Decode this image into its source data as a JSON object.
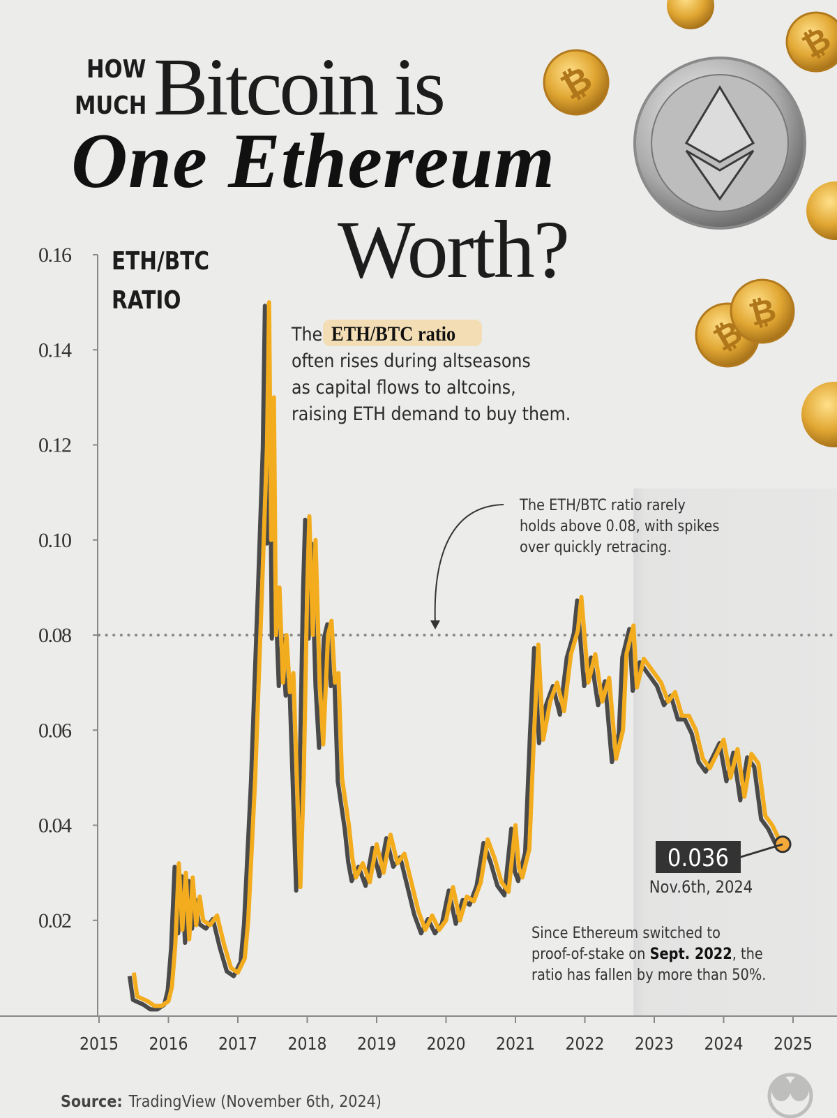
{
  "header": {
    "kicker_line1": "HOW",
    "kicker_line2": "MUCH",
    "title_line1": "Bitcoin is",
    "title_line2": "One Ethereum",
    "title_line3": "Worth?"
  },
  "annotations": {
    "intro_prefix": "The",
    "intro_highlight": "ETH/BTC ratio",
    "intro_lines": [
      "often rises during altseasons",
      "as capital flows to altcoins,",
      "raising ETH demand to buy them."
    ],
    "threshold_lines": [
      "The ETH/BTC ratio rarely",
      "holds above 0.08, with spikes",
      "over quickly retracing."
    ],
    "pos_line1": "Since Ethereum switched to",
    "pos_line2_a": "proof-of-stake on ",
    "pos_line2_bold": "Sept. 2022",
    "pos_line2_b": ", the",
    "pos_line3": "ratio has fallen by more than 50%.",
    "latest_value": "0.036",
    "latest_date": "Nov.6th, 2024"
  },
  "footer": {
    "source_label": "Source:",
    "source_text": "TradingView (November 6th, 2024)",
    "logo": "Visual Capitalist"
  },
  "colors": {
    "line": "#f2ac1e",
    "shadow": "#4a4a4a",
    "text": "#1c1c1c",
    "background": "#ececeb"
  },
  "icons": [
    "bitcoin-coin-icon",
    "ethereum-coin-icon",
    "arrow-icon",
    "logo-icon"
  ],
  "chart_data": {
    "type": "line",
    "ylabel": "ETH/BTC RATIO",
    "xlabel": "",
    "ylim": [
      0,
      0.16
    ],
    "xlim": [
      2015,
      2025
    ],
    "yticks": [
      "0.02",
      "0.04",
      "0.06",
      "0.08",
      "0.10",
      "0.12",
      "0.14",
      "0.16"
    ],
    "xticks": [
      "2015",
      "2016",
      "2017",
      "2018",
      "2019",
      "2020",
      "2021",
      "2022",
      "2023",
      "2024",
      "2025"
    ],
    "reference_line": 0.08,
    "highlight_start": 2022.7,
    "x": [
      2015.5,
      2015.55,
      2015.7,
      2015.8,
      2015.9,
      2016.0,
      2016.05,
      2016.1,
      2016.15,
      2016.2,
      2016.25,
      2016.3,
      2016.35,
      2016.4,
      2016.45,
      2016.5,
      2016.6,
      2016.7,
      2016.8,
      2016.9,
      2017.0,
      2017.1,
      2017.15,
      2017.2,
      2017.25,
      2017.3,
      2017.35,
      2017.42,
      2017.45,
      2017.48,
      2017.52,
      2017.55,
      2017.6,
      2017.65,
      2017.7,
      2017.75,
      2017.8,
      2017.85,
      2017.9,
      2017.95,
      2018.0,
      2018.03,
      2018.08,
      2018.12,
      2018.18,
      2018.23,
      2018.3,
      2018.35,
      2018.4,
      2018.45,
      2018.5,
      2018.55,
      2018.6,
      2018.65,
      2018.7,
      2018.8,
      2018.9,
      2019.0,
      2019.1,
      2019.2,
      2019.3,
      2019.4,
      2019.5,
      2019.6,
      2019.7,
      2019.8,
      2019.9,
      2020.0,
      2020.1,
      2020.2,
      2020.3,
      2020.4,
      2020.5,
      2020.6,
      2020.7,
      2020.8,
      2020.9,
      2021.0,
      2021.05,
      2021.1,
      2021.2,
      2021.27,
      2021.33,
      2021.4,
      2021.5,
      2021.6,
      2021.7,
      2021.8,
      2021.9,
      2021.95,
      2022.05,
      2022.15,
      2022.25,
      2022.35,
      2022.45,
      2022.55,
      2022.6,
      2022.7,
      2022.75,
      2022.85,
      2023.0,
      2023.1,
      2023.2,
      2023.3,
      2023.4,
      2023.5,
      2023.6,
      2023.7,
      2023.8,
      2023.9,
      2024.0,
      2024.1,
      2024.2,
      2024.3,
      2024.4,
      2024.5,
      2024.6,
      2024.7,
      2024.8,
      2024.85
    ],
    "values": [
      0.009,
      0.004,
      0.003,
      0.002,
      0.002,
      0.003,
      0.006,
      0.015,
      0.032,
      0.018,
      0.03,
      0.016,
      0.029,
      0.019,
      0.025,
      0.02,
      0.019,
      0.021,
      0.015,
      0.01,
      0.009,
      0.012,
      0.02,
      0.035,
      0.05,
      0.07,
      0.09,
      0.12,
      0.15,
      0.1,
      0.13,
      0.08,
      0.09,
      0.07,
      0.08,
      0.068,
      0.072,
      0.05,
      0.027,
      0.05,
      0.09,
      0.105,
      0.08,
      0.1,
      0.07,
      0.057,
      0.08,
      0.083,
      0.07,
      0.072,
      0.05,
      0.045,
      0.04,
      0.033,
      0.029,
      0.032,
      0.028,
      0.036,
      0.03,
      0.038,
      0.032,
      0.034,
      0.028,
      0.022,
      0.018,
      0.021,
      0.018,
      0.02,
      0.027,
      0.02,
      0.025,
      0.024,
      0.028,
      0.037,
      0.033,
      0.028,
      0.026,
      0.04,
      0.031,
      0.029,
      0.035,
      0.06,
      0.078,
      0.058,
      0.066,
      0.07,
      0.064,
      0.076,
      0.081,
      0.088,
      0.07,
      0.076,
      0.066,
      0.071,
      0.054,
      0.06,
      0.076,
      0.082,
      0.069,
      0.075,
      0.072,
      0.07,
      0.066,
      0.068,
      0.063,
      0.063,
      0.06,
      0.054,
      0.052,
      0.055,
      0.058,
      0.05,
      0.056,
      0.046,
      0.055,
      0.053,
      0.042,
      0.04,
      0.037,
      0.036
    ]
  }
}
